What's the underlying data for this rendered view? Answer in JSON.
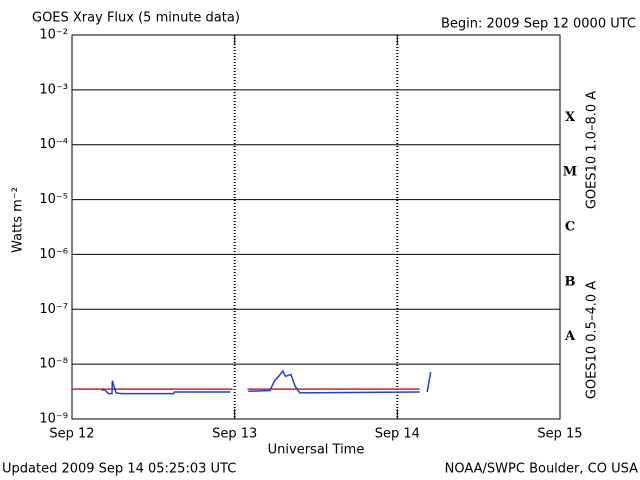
{
  "chart_data": {
    "type": "line",
    "title": "GOES Xray Flux (5 minute data)",
    "subtitle": "Begin:  2009 Sep 12 0000 UTC",
    "y_label": "Watts m⁻²",
    "x_label": "Universal Time",
    "footer_left": "Updated 2009 Sep 14 05:25:03 UTC",
    "footer_right": "NOAA/SWPC Boulder, CO USA",
    "log_y": true,
    "grid": true,
    "flare_classes": [
      "X",
      "M",
      "C",
      "B",
      "A"
    ],
    "xlim": [
      0,
      72
    ],
    "xticks": [
      {
        "value": 0,
        "label": "Sep 12"
      },
      {
        "value": 24,
        "label": "Sep 13"
      },
      {
        "value": 48,
        "label": "Sep 14"
      },
      {
        "value": 72,
        "label": "Sep 15"
      }
    ],
    "ylim": [
      1e-09,
      0.01
    ],
    "yticks": [
      {
        "value": 1e-09,
        "label": "10⁻⁹"
      },
      {
        "value": 1e-08,
        "label": "10⁻⁸"
      },
      {
        "value": 1e-07,
        "label": "10⁻⁷"
      },
      {
        "value": 1e-06,
        "label": "10⁻⁶"
      },
      {
        "value": 1e-05,
        "label": "10⁻⁵"
      },
      {
        "value": 0.0001,
        "label": "10⁻⁴"
      },
      {
        "value": 0.001,
        "label": "10⁻³"
      },
      {
        "value": 0.01,
        "label": "10⁻²"
      }
    ],
    "series": [
      {
        "name": "GOES10 1.0–8.0 A",
        "color": "#d42020",
        "x": [
          0,
          23.7,
          null,
          25.9,
          51.3
        ],
        "values": [
          3.5e-09,
          3.5e-09,
          null,
          3.5e-09,
          3.5e-09
        ]
      },
      {
        "name": "GOES10 0.5–4.0 A",
        "color": "#2040d0",
        "x": [
          4.3,
          4.8,
          5.4,
          5.9,
          5.95,
          6.5,
          7.3,
          15,
          15.1,
          23.4,
          null,
          26,
          29.2,
          29.9,
          30.5,
          31.1,
          31.5,
          32.3,
          32.9,
          33.6,
          51.3,
          null,
          52.4,
          52.9,
          53.0
        ],
        "values": [
          3.4e-09,
          3.4e-09,
          2.9e-09,
          2.9e-09,
          5e-09,
          3e-09,
          2.9e-09,
          2.9e-09,
          3.1e-09,
          3.1e-09,
          null,
          3.2e-09,
          3.3e-09,
          5e-09,
          6e-09,
          7.5e-09,
          6e-09,
          6.5e-09,
          4e-09,
          3e-09,
          3.1e-09,
          null,
          3.1e-09,
          7e-09,
          7e-09
        ]
      }
    ]
  }
}
